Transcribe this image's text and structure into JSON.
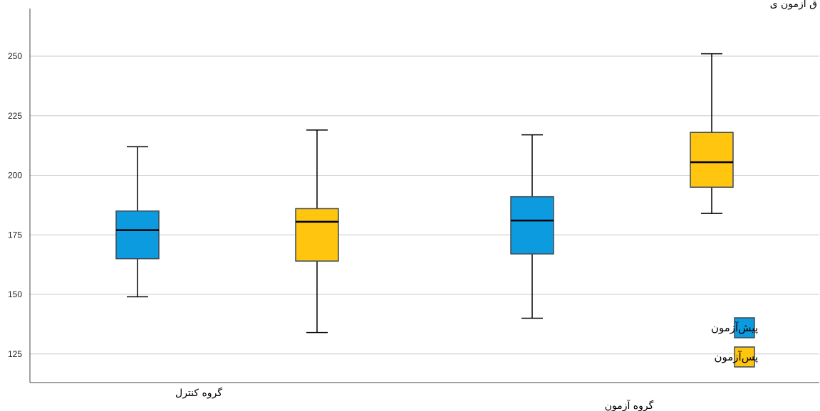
{
  "chart_data": {
    "type": "boxplot",
    "title": "ق آزمون ی",
    "categories": [
      "گروه کنترل",
      "گروه آزمون"
    ],
    "yticks": [
      125,
      150,
      175,
      200,
      225,
      250
    ],
    "ylim": [
      113,
      270
    ],
    "grid": true,
    "legend_position": "bottom-right",
    "series": [
      {
        "name": "پیش‌آزمون",
        "color": "#0d9be0",
        "boxes": [
          {
            "min": 149,
            "q1": 165,
            "median": 177,
            "q3": 185,
            "max": 212
          },
          {
            "min": 140,
            "q1": 167,
            "median": 181,
            "q3": 191,
            "max": 217
          }
        ]
      },
      {
        "name": "پس‌آزمون",
        "color": "#ffc50f",
        "boxes": [
          {
            "min": 134,
            "q1": 164,
            "median": 180.5,
            "q3": 186,
            "max": 219
          },
          {
            "min": 184,
            "q1": 195,
            "median": 205.5,
            "q3": 218,
            "max": 251
          }
        ]
      }
    ]
  }
}
